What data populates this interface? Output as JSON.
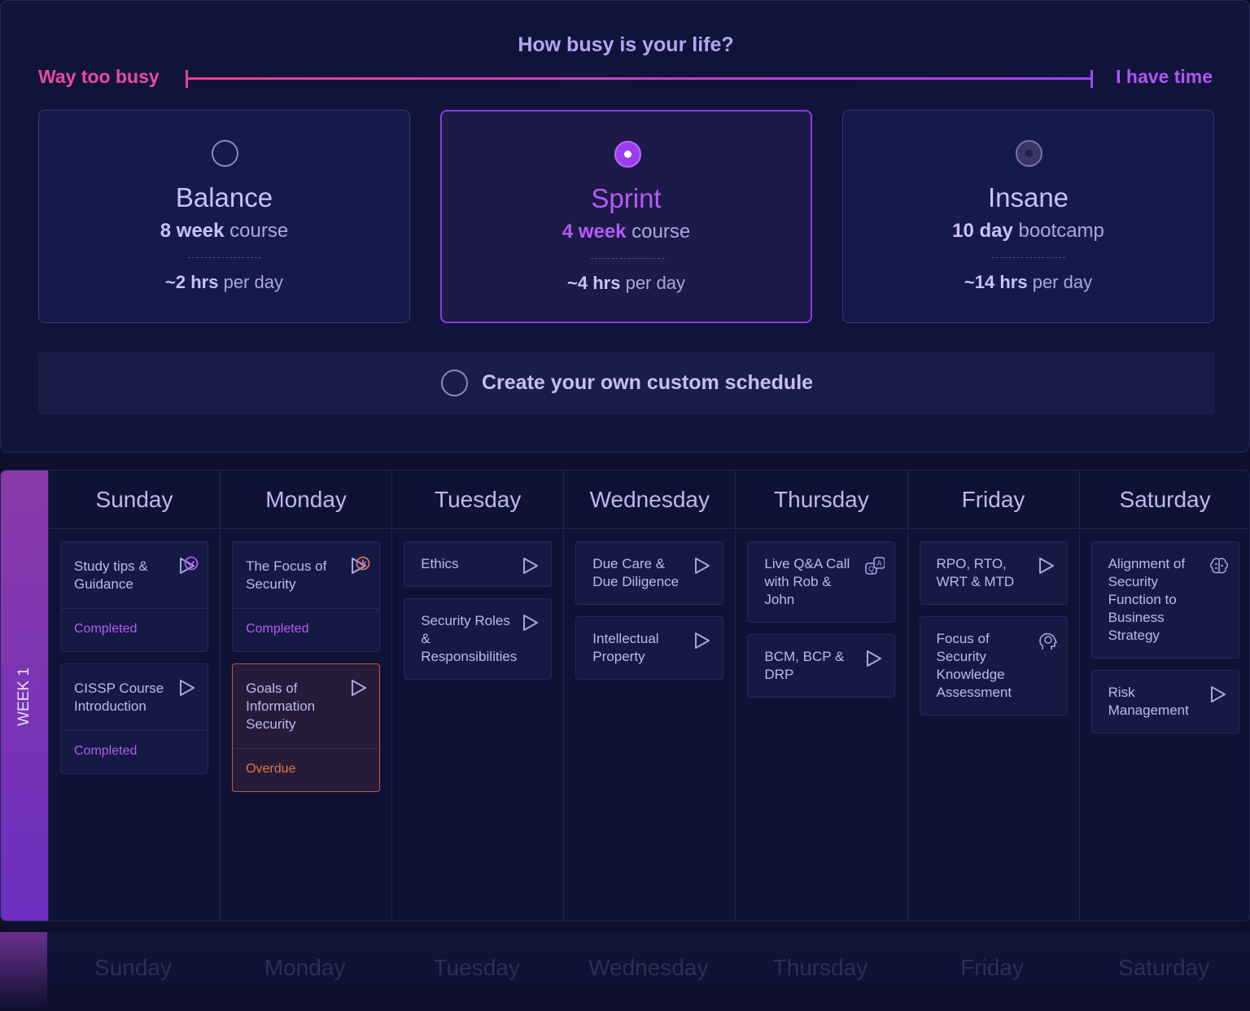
{
  "pace": {
    "title": "How busy is your life?",
    "left_label": "Way too busy",
    "right_label": "I have time",
    "options": [
      {
        "name": "Balance",
        "amount": "8 week",
        "unit": "course",
        "hours": "~2 hrs",
        "per": "per day",
        "state": "none"
      },
      {
        "name": "Sprint",
        "amount": "4 week",
        "unit": "course",
        "hours": "~4 hrs",
        "per": "per day",
        "state": "selected"
      },
      {
        "name": "Insane",
        "amount": "10 day",
        "unit": "bootcamp",
        "hours": "~14 hrs",
        "per": "per day",
        "state": "hover"
      }
    ],
    "custom": "Create your own custom schedule"
  },
  "schedule": {
    "week": "WEEK 1",
    "days": [
      {
        "name": "Sunday",
        "tasks": [
          {
            "title": "Study tips & Guidance",
            "icon": "play",
            "status": "Completed"
          },
          {
            "title": "CISSP Course Introduction",
            "icon": "play",
            "status": "Completed"
          }
        ]
      },
      {
        "name": "Monday",
        "tasks": [
          {
            "title": "The Focus of Security",
            "icon": "play",
            "status": "Completed"
          },
          {
            "title": "Goals of Information Security",
            "icon": "play",
            "status": "Overdue"
          }
        ]
      },
      {
        "name": "Tuesday",
        "tasks": [
          {
            "title": "Ethics",
            "icon": "play"
          },
          {
            "title": "Security Roles & Responsibilities",
            "icon": "play"
          }
        ]
      },
      {
        "name": "Wednesday",
        "tasks": [
          {
            "title": "Due Care & Due Diligence",
            "icon": "play"
          },
          {
            "title": "Intellectual Property",
            "icon": "play"
          }
        ]
      },
      {
        "name": "Thursday",
        "tasks": [
          {
            "title": "Live Q&A Call with Rob & John",
            "icon": "qa"
          },
          {
            "title": "BCM, BCP & DRP",
            "icon": "play"
          }
        ]
      },
      {
        "name": "Friday",
        "tasks": [
          {
            "title": "RPO, RTO, WRT & MTD",
            "icon": "play"
          },
          {
            "title": "Focus of Security Knowledge Assessment",
            "icon": "head"
          }
        ]
      },
      {
        "name": "Saturday",
        "tasks": [
          {
            "title": "Alignment of Security Function to Business Strategy",
            "icon": "brain"
          },
          {
            "title": "Risk Management",
            "icon": "play"
          }
        ]
      }
    ]
  }
}
